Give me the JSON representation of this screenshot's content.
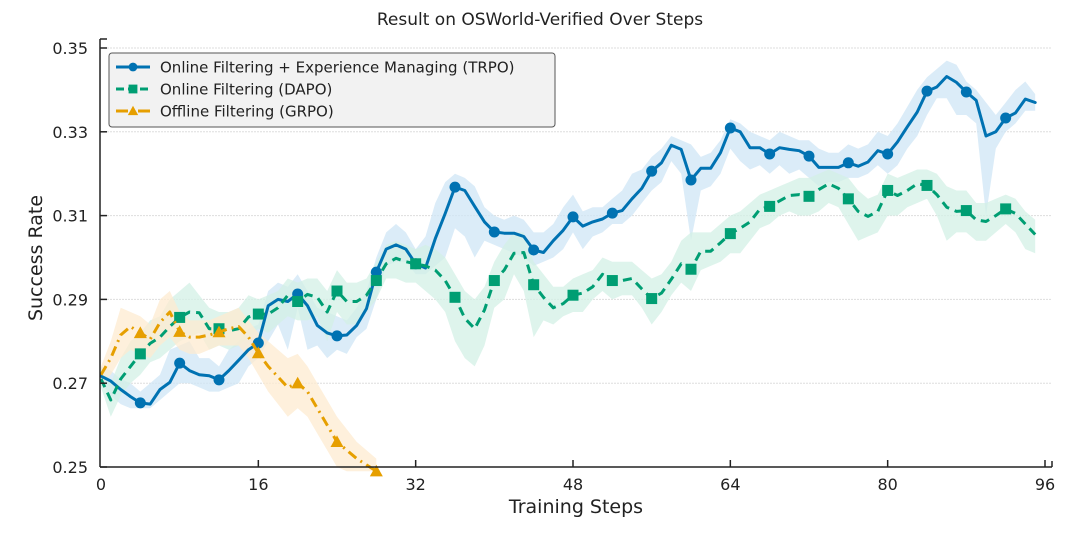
{
  "chart_data": {
    "type": "line",
    "title": "Result on OSWorld-Verified Over Steps",
    "xlabel": "Training Steps",
    "ylabel": "Success Rate",
    "xlim": [
      0,
      96
    ],
    "ylim": [
      0.25,
      0.35
    ],
    "xticks": [
      0,
      16,
      32,
      48,
      64,
      80,
      96
    ],
    "xtick_labels": [
      "0",
      "16",
      "32",
      "48",
      "64",
      "80",
      "96"
    ],
    "yticks": [
      0.25,
      0.27,
      0.29,
      0.31,
      0.33,
      0.35
    ],
    "ytick_labels": [
      "0.25",
      "0.27",
      "0.29",
      "0.31",
      "0.33",
      "0.35"
    ],
    "grid": true,
    "legend_position": "top-left",
    "series": [
      {
        "name": "Online Filtering + Experience Managing (TRPO)",
        "color": "#0072b2",
        "band_color": "#cfe6f5",
        "line_style": "solid",
        "marker": "circle",
        "marker_every": 4,
        "x": [
          0,
          1,
          2,
          3,
          4,
          5,
          6,
          7,
          8,
          9,
          10,
          11,
          12,
          13,
          14,
          15,
          16,
          17,
          18,
          19,
          20,
          21,
          22,
          23,
          24,
          25,
          26,
          27,
          28,
          29,
          30,
          31,
          32,
          33,
          34,
          35,
          36,
          37,
          38,
          39,
          40,
          41,
          42,
          43,
          44,
          45,
          46,
          47,
          48,
          49,
          50,
          51,
          52,
          53,
          54,
          55,
          56,
          57,
          58,
          59,
          60,
          61,
          62,
          63,
          64,
          65,
          66,
          67,
          68,
          69,
          70,
          71,
          72,
          73,
          74,
          75,
          76,
          77,
          78,
          79,
          80,
          81,
          82,
          83,
          84,
          85,
          86,
          87,
          88,
          89,
          90,
          91,
          92,
          93,
          94,
          95
        ],
        "values": [
          0.2717,
          0.2705,
          0.2685,
          0.2668,
          0.2653,
          0.265,
          0.2685,
          0.2702,
          0.2748,
          0.273,
          0.272,
          0.2718,
          0.2708,
          0.273,
          0.2755,
          0.278,
          0.2796,
          0.2885,
          0.29,
          0.2895,
          0.2913,
          0.2885,
          0.2838,
          0.282,
          0.2813,
          0.2815,
          0.2838,
          0.2878,
          0.2965,
          0.302,
          0.303,
          0.302,
          0.2985,
          0.2975,
          0.3045,
          0.3105,
          0.3168,
          0.316,
          0.3122,
          0.3085,
          0.3061,
          0.3058,
          0.3058,
          0.305,
          0.3018,
          0.3012,
          0.304,
          0.3065,
          0.3097,
          0.3075,
          0.3085,
          0.3092,
          0.3106,
          0.3112,
          0.314,
          0.3165,
          0.3206,
          0.3226,
          0.3268,
          0.3258,
          0.3185,
          0.3213,
          0.3213,
          0.325,
          0.3309,
          0.33,
          0.3262,
          0.3262,
          0.3247,
          0.3262,
          0.3258,
          0.3255,
          0.3242,
          0.3215,
          0.3215,
          0.3215,
          0.3226,
          0.3218,
          0.3228,
          0.3255,
          0.3247,
          0.3276,
          0.3312,
          0.3347,
          0.3397,
          0.3407,
          0.3432,
          0.3418,
          0.3395,
          0.3375,
          0.329,
          0.33,
          0.3333,
          0.3345,
          0.3378,
          0.337
        ],
        "band_low": [
          0.27,
          0.267,
          0.265,
          0.264,
          0.264,
          0.264,
          0.266,
          0.268,
          0.27,
          0.27,
          0.269,
          0.268,
          0.268,
          0.269,
          0.27,
          0.274,
          0.276,
          0.28,
          0.284,
          0.278,
          0.288,
          0.278,
          0.279,
          0.276,
          0.278,
          0.277,
          0.281,
          0.283,
          0.29,
          0.298,
          0.299,
          0.299,
          0.296,
          0.296,
          0.298,
          0.3,
          0.307,
          0.305,
          0.3,
          0.304,
          0.303,
          0.302,
          0.301,
          0.3,
          0.298,
          0.299,
          0.3,
          0.302,
          0.306,
          0.302,
          0.305,
          0.306,
          0.308,
          0.308,
          0.31,
          0.313,
          0.316,
          0.318,
          0.323,
          0.32,
          0.304,
          0.316,
          0.317,
          0.32,
          0.326,
          0.323,
          0.321,
          0.322,
          0.32,
          0.322,
          0.32,
          0.321,
          0.319,
          0.317,
          0.318,
          0.318,
          0.319,
          0.319,
          0.32,
          0.322,
          0.32,
          0.322,
          0.326,
          0.329,
          0.334,
          0.338,
          0.338,
          0.334,
          0.334,
          0.332,
          0.31,
          0.326,
          0.33,
          0.332,
          0.335,
          0.335
        ],
        "band_high": [
          0.274,
          0.273,
          0.271,
          0.27,
          0.268,
          0.27,
          0.272,
          0.278,
          0.279,
          0.28,
          0.276,
          0.276,
          0.274,
          0.278,
          0.28,
          0.283,
          0.284,
          0.292,
          0.294,
          0.293,
          0.296,
          0.292,
          0.288,
          0.287,
          0.286,
          0.285,
          0.288,
          0.292,
          0.3,
          0.306,
          0.308,
          0.306,
          0.302,
          0.305,
          0.313,
          0.318,
          0.32,
          0.319,
          0.317,
          0.312,
          0.31,
          0.309,
          0.31,
          0.309,
          0.306,
          0.306,
          0.308,
          0.312,
          0.315,
          0.311,
          0.312,
          0.312,
          0.314,
          0.316,
          0.32,
          0.321,
          0.324,
          0.326,
          0.329,
          0.328,
          0.327,
          0.324,
          0.325,
          0.328,
          0.333,
          0.332,
          0.33,
          0.329,
          0.328,
          0.33,
          0.329,
          0.328,
          0.328,
          0.326,
          0.325,
          0.325,
          0.327,
          0.326,
          0.327,
          0.33,
          0.329,
          0.332,
          0.336,
          0.34,
          0.343,
          0.345,
          0.347,
          0.346,
          0.342,
          0.34,
          0.337,
          0.334,
          0.337,
          0.34,
          0.342,
          0.339
        ]
      },
      {
        "name": "Online Filtering (DAPO)",
        "color": "#009e73",
        "band_color": "#d3f0e6",
        "line_style": "dashed",
        "marker": "square",
        "marker_every": 4,
        "x": [
          0,
          1,
          2,
          3,
          4,
          5,
          6,
          7,
          8,
          9,
          10,
          11,
          12,
          13,
          14,
          15,
          16,
          17,
          18,
          19,
          20,
          21,
          22,
          23,
          24,
          25,
          26,
          27,
          28,
          29,
          30,
          31,
          32,
          33,
          34,
          35,
          36,
          37,
          38,
          39,
          40,
          41,
          42,
          43,
          44,
          45,
          46,
          47,
          48,
          49,
          50,
          51,
          52,
          53,
          54,
          55,
          56,
          57,
          58,
          59,
          60,
          61,
          62,
          63,
          64,
          65,
          66,
          67,
          68,
          69,
          70,
          71,
          72,
          73,
          74,
          75,
          76,
          77,
          78,
          79,
          80,
          81,
          82,
          83,
          84,
          85,
          86,
          87,
          88,
          89,
          90,
          91,
          92,
          93,
          94,
          95
        ],
        "values": [
          0.271,
          0.266,
          0.271,
          0.274,
          0.277,
          0.2795,
          0.281,
          0.2835,
          0.2857,
          0.287,
          0.2868,
          0.283,
          0.283,
          0.2825,
          0.283,
          0.2858,
          0.2865,
          0.2865,
          0.288,
          0.291,
          0.2895,
          0.2912,
          0.2905,
          0.287,
          0.292,
          0.2895,
          0.2895,
          0.291,
          0.2945,
          0.2985,
          0.2998,
          0.299,
          0.2985,
          0.298,
          0.297,
          0.2945,
          0.2905,
          0.2855,
          0.283,
          0.2875,
          0.2945,
          0.297,
          0.301,
          0.3012,
          0.2935,
          0.2905,
          0.288,
          0.289,
          0.291,
          0.2915,
          0.293,
          0.296,
          0.2945,
          0.2945,
          0.295,
          0.2925,
          0.2902,
          0.2915,
          0.2948,
          0.2985,
          0.2972,
          0.3015,
          0.3015,
          0.3035,
          0.3057,
          0.307,
          0.3085,
          0.3115,
          0.3122,
          0.3135,
          0.3148,
          0.315,
          0.3146,
          0.3162,
          0.3176,
          0.3165,
          0.314,
          0.311,
          0.3098,
          0.311,
          0.316,
          0.3148,
          0.316,
          0.3176,
          0.3172,
          0.315,
          0.312,
          0.311,
          0.3112,
          0.309,
          0.3086,
          0.31,
          0.3116,
          0.3105,
          0.308,
          0.3055
        ],
        "band_low": [
          0.269,
          0.262,
          0.267,
          0.27,
          0.272,
          0.275,
          0.276,
          0.278,
          0.28,
          0.281,
          0.282,
          0.278,
          0.279,
          0.278,
          0.279,
          0.281,
          0.283,
          0.282,
          0.284,
          0.286,
          0.285,
          0.285,
          0.286,
          0.28,
          0.287,
          0.284,
          0.284,
          0.287,
          0.29,
          0.295,
          0.295,
          0.294,
          0.294,
          0.292,
          0.29,
          0.287,
          0.28,
          0.276,
          0.274,
          0.279,
          0.288,
          0.29,
          0.296,
          0.292,
          0.281,
          0.285,
          0.284,
          0.286,
          0.287,
          0.287,
          0.29,
          0.292,
          0.29,
          0.291,
          0.291,
          0.288,
          0.284,
          0.287,
          0.291,
          0.294,
          0.292,
          0.297,
          0.298,
          0.299,
          0.301,
          0.301,
          0.304,
          0.307,
          0.308,
          0.31,
          0.311,
          0.31,
          0.31,
          0.311,
          0.313,
          0.312,
          0.308,
          0.304,
          0.305,
          0.306,
          0.31,
          0.31,
          0.312,
          0.313,
          0.314,
          0.31,
          0.304,
          0.306,
          0.306,
          0.304,
          0.304,
          0.306,
          0.308,
          0.306,
          0.302,
          0.301
        ],
        "band_high": [
          0.274,
          0.27,
          0.276,
          0.28,
          0.282,
          0.285,
          0.286,
          0.29,
          0.292,
          0.294,
          0.291,
          0.288,
          0.287,
          0.287,
          0.288,
          0.291,
          0.29,
          0.291,
          0.292,
          0.295,
          0.294,
          0.295,
          0.295,
          0.292,
          0.297,
          0.294,
          0.294,
          0.295,
          0.299,
          0.303,
          0.304,
          0.303,
          0.302,
          0.303,
          0.302,
          0.3,
          0.296,
          0.292,
          0.29,
          0.293,
          0.299,
          0.303,
          0.306,
          0.306,
          0.299,
          0.296,
          0.293,
          0.293,
          0.295,
          0.296,
          0.297,
          0.3,
          0.299,
          0.299,
          0.299,
          0.297,
          0.295,
          0.296,
          0.299,
          0.304,
          0.306,
          0.306,
          0.306,
          0.308,
          0.31,
          0.311,
          0.313,
          0.315,
          0.316,
          0.317,
          0.318,
          0.319,
          0.319,
          0.32,
          0.321,
          0.32,
          0.319,
          0.316,
          0.314,
          0.315,
          0.32,
          0.319,
          0.32,
          0.321,
          0.321,
          0.32,
          0.317,
          0.316,
          0.316,
          0.313,
          0.313,
          0.314,
          0.315,
          0.314,
          0.311,
          0.309
        ]
      },
      {
        "name": "Offline Filtering (GRPO)",
        "color": "#e69f00",
        "band_color": "#fdebd0",
        "line_style": "dashdot",
        "marker": "triangle",
        "marker_every": 4,
        "x": [
          0,
          1,
          2,
          3,
          4,
          5,
          6,
          7,
          8,
          9,
          10,
          11,
          12,
          13,
          14,
          15,
          16,
          17,
          18,
          19,
          20,
          21,
          22,
          23,
          24,
          25,
          26,
          27,
          28
        ],
        "values": [
          0.272,
          0.276,
          0.2815,
          0.2835,
          0.282,
          0.2805,
          0.2845,
          0.287,
          0.2823,
          0.281,
          0.281,
          0.2815,
          0.2822,
          0.283,
          0.2835,
          0.281,
          0.2772,
          0.274,
          0.2715,
          0.269,
          0.27,
          0.268,
          0.264,
          0.26,
          0.256,
          0.254,
          0.252,
          0.2505,
          0.249
        ],
        "band_low": [
          0.27,
          0.272,
          0.276,
          0.278,
          0.277,
          0.276,
          0.279,
          0.281,
          0.278,
          0.277,
          0.277,
          0.278,
          0.279,
          0.279,
          0.279,
          0.276,
          0.272,
          0.268,
          0.265,
          0.262,
          0.264,
          0.262,
          0.258,
          0.254,
          0.25,
          0.249,
          0.249,
          0.249,
          0.249
        ],
        "band_high": [
          0.274,
          0.28,
          0.288,
          0.287,
          0.286,
          0.284,
          0.29,
          0.292,
          0.287,
          0.285,
          0.285,
          0.285,
          0.286,
          0.287,
          0.288,
          0.285,
          0.282,
          0.28,
          0.278,
          0.276,
          0.277,
          0.274,
          0.27,
          0.266,
          0.262,
          0.259,
          0.256,
          0.254,
          0.252
        ]
      }
    ]
  }
}
